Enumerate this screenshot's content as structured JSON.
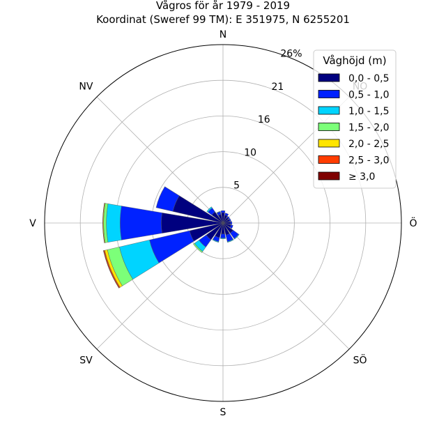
{
  "chart_data": {
    "type": "windrose",
    "title": "Vågros för år 1979 - 2019",
    "subtitle": "Koordinat (Sweref 99 TM): E 351975, N 6255201",
    "compass_labels": [
      "N",
      "NO",
      "Ö",
      "SÖ",
      "S",
      "SV",
      "V",
      "NV"
    ],
    "directions_deg": [
      0,
      22.5,
      45,
      67.5,
      90,
      112.5,
      135,
      157.5,
      180,
      202.5,
      225,
      247.5,
      270,
      292.5,
      315,
      337.5
    ],
    "radial_ticks": [
      "5",
      "10",
      "16",
      "21",
      "26%"
    ],
    "radial_tick_values": [
      5.2,
      10.4,
      15.6,
      20.8,
      26
    ],
    "rmax": 26,
    "grid": true,
    "legend": {
      "title": "Våghöjd (m)",
      "placement": "top-right",
      "bins": [
        {
          "label": "0,0 - 0,5",
          "color": "#00007f"
        },
        {
          "label": "0,5 - 1,0",
          "color": "#0022ff"
        },
        {
          "label": "1,0 - 1,5",
          "color": "#00d4ff"
        },
        {
          "label": "1,5 - 2,0",
          "color": "#7cff79"
        },
        {
          "label": "2,0 - 2,5",
          "color": "#ffe500"
        },
        {
          "label": "2,5 - 3,0",
          "color": "#ff3d00"
        },
        {
          "label": "≥ 3,0",
          "color": "#7f0000"
        }
      ]
    },
    "series": [
      {
        "name": "0,0 - 0,5",
        "values": [
          1.5,
          1.2,
          1.0,
          1.0,
          1.1,
          1.2,
          1.8,
          1.8,
          1.6,
          2.2,
          3.0,
          5.0,
          9.0,
          7.5,
          2.0,
          1.3
        ]
      },
      {
        "name": "0,5 - 1,0",
        "values": [
          0.3,
          0.3,
          0.2,
          0.2,
          0.2,
          0.3,
          1.0,
          1.0,
          0.6,
          0.6,
          1.3,
          6.0,
          6.0,
          2.5,
          0.7,
          0.4
        ]
      },
      {
        "name": "1,0 - 1,5",
        "values": [
          0,
          0,
          0,
          0,
          0,
          0,
          0.1,
          0.1,
          0.1,
          0.1,
          0.8,
          4.5,
          2.0,
          0,
          0.2,
          0.05
        ]
      },
      {
        "name": "1,5 - 2,0",
        "values": [
          0,
          0,
          0,
          0,
          0,
          0,
          0,
          0,
          0,
          0,
          0.2,
          1.8,
          0.4,
          0,
          0,
          0
        ]
      },
      {
        "name": "2,0 - 2,5",
        "values": [
          0,
          0,
          0,
          0,
          0,
          0,
          0,
          0,
          0,
          0,
          0,
          0.4,
          0.1,
          0,
          0,
          0
        ]
      },
      {
        "name": "2,5 - 3,0",
        "values": [
          0,
          0,
          0,
          0,
          0,
          0,
          0,
          0,
          0,
          0,
          0,
          0.15,
          0.02,
          0,
          0,
          0
        ]
      },
      {
        "name": "≥ 3,0",
        "values": [
          0,
          0,
          0,
          0,
          0,
          0,
          0,
          0,
          0,
          0,
          0,
          0.05,
          0.01,
          0,
          0,
          0
        ]
      }
    ]
  }
}
